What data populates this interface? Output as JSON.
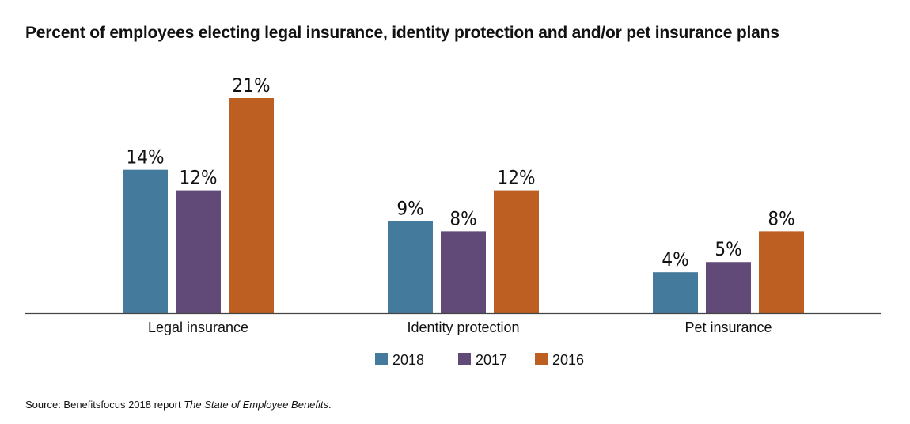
{
  "title": "Percent of employees electing legal insurance, identity protection and and/or pet insurance plans",
  "source": {
    "prefix": "Source: Benefitsfocus 2018 report ",
    "work_title": "The State of Employee Benefits",
    "suffix": "."
  },
  "colors": {
    "2018": "#447b9c",
    "2017": "#614a77",
    "2016": "#bd5f22",
    "axis": "#444444"
  },
  "chart_data": {
    "type": "bar",
    "title": "Percent of employees electing legal insurance, identity protection and and/or pet insurance plans",
    "categories": [
      "Legal insurance",
      "Identity protection",
      "Pet insurance"
    ],
    "series": [
      {
        "name": "2018",
        "values": [
          14,
          9,
          4
        ],
        "labels": [
          "14%",
          "9%",
          "4%"
        ]
      },
      {
        "name": "2017",
        "values": [
          12,
          8,
          5
        ],
        "labels": [
          "12%",
          "8%",
          "5%"
        ]
      },
      {
        "name": "2016",
        "values": [
          21,
          12,
          8
        ],
        "labels": [
          "21%",
          "12%",
          "8%"
        ]
      }
    ],
    "xlabel": "",
    "ylabel": "",
    "ylim": [
      0,
      21
    ],
    "unit": "%",
    "grid": false,
    "legend_position": "bottom-center"
  }
}
